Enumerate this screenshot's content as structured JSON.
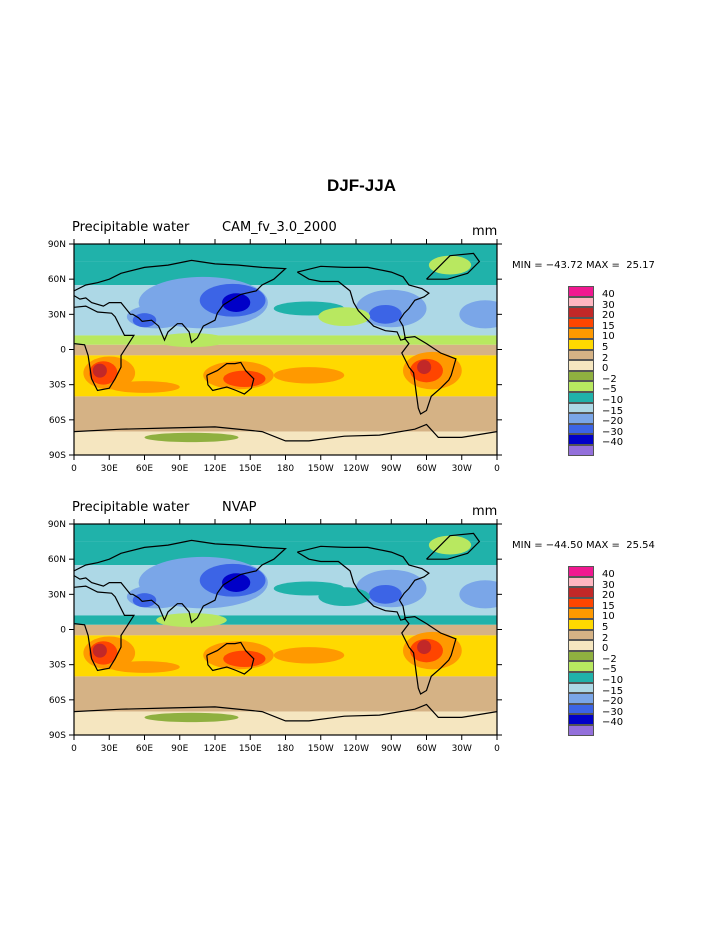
{
  "title": "DJF-JJA",
  "lat_ticks": [
    "90N",
    "60N",
    "30N",
    "0",
    "30S",
    "60S",
    "90S"
  ],
  "lon_ticks": [
    "0",
    "30E",
    "60E",
    "90E",
    "120E",
    "150E",
    "180",
    "150W",
    "120W",
    "90W",
    "60W",
    "30W",
    "0"
  ],
  "legend": {
    "levels": [
      "40",
      "30",
      "20",
      "15",
      "10",
      "5",
      "2",
      "0",
      "−2",
      "−5",
      "−10",
      "−15",
      "−20",
      "−30",
      "−40"
    ],
    "colors": [
      "#f01890",
      "#ffb6c1",
      "#c22828",
      "#ff4500",
      "#ff9900",
      "#ffd900",
      "#d5b285",
      "#f5e6c0",
      "#8fb040",
      "#b8e860",
      "#20b2aa",
      "#add8e6",
      "#7aa6e8",
      "#3c64e6",
      "#0000c8",
      "#9370db"
    ]
  },
  "panels": [
    {
      "left_text": "Precipitable water",
      "center_text": "CAM_fv_3.0_2000",
      "units": "mm",
      "min_max": "MIN = −43.72 MAX =  25.17"
    },
    {
      "left_text": "Precipitable water",
      "center_text": "NVAP",
      "units": "mm",
      "min_max": "MIN = −44.50 MAX =  25.54"
    }
  ],
  "chart_data": [
    {
      "type": "heatmap",
      "title": "DJF-JJA",
      "subtitle": "Precipitable water CAM_fv_3.0_2000",
      "units": "mm",
      "xlim": [
        0,
        360
      ],
      "ylim": [
        -90,
        90
      ],
      "min": -43.72,
      "max": 25.17,
      "contour_levels": [
        -40,
        -30,
        -20,
        -15,
        -10,
        -5,
        -2,
        0,
        2,
        5,
        10,
        15,
        20,
        30,
        40
      ]
    },
    {
      "type": "heatmap",
      "title": "DJF-JJA",
      "subtitle": "Precipitable water NVAP",
      "units": "mm",
      "xlim": [
        0,
        360
      ],
      "ylim": [
        -90,
        90
      ],
      "min": -44.5,
      "max": 25.54,
      "contour_levels": [
        -40,
        -30,
        -20,
        -15,
        -10,
        -5,
        -2,
        0,
        2,
        5,
        10,
        15,
        20,
        30,
        40
      ]
    }
  ]
}
